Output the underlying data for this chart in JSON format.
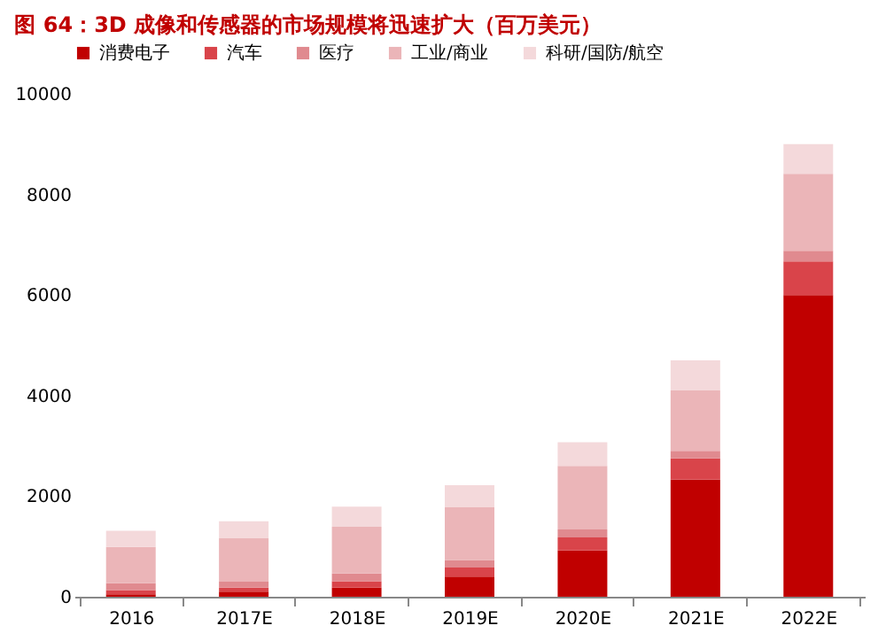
{
  "chart_data": {
    "type": "bar",
    "title": "图 64：3D 成像和传感器的市场规模将迅速扩大（百万美元）",
    "stacked": true,
    "categories": [
      "2016",
      "2017E",
      "2018E",
      "2019E",
      "2020E",
      "2021E",
      "2022E"
    ],
    "series": [
      {
        "name": "消费电子",
        "color": "#c00000",
        "values": [
          50,
          100,
          180,
          400,
          920,
          2330,
          6000
        ]
      },
      {
        "name": "汽车",
        "color": "#d9444a",
        "values": [
          80,
          80,
          130,
          180,
          260,
          420,
          670
        ]
      },
      {
        "name": "医疗",
        "color": "#e08a8f",
        "values": [
          140,
          120,
          150,
          150,
          160,
          150,
          210
        ]
      },
      {
        "name": "工业/商业",
        "color": "#ebb5b8",
        "values": [
          720,
          860,
          930,
          1050,
          1260,
          1200,
          1530
        ]
      },
      {
        "name": "科研/国防/航空",
        "color": "#f4d9db",
        "values": [
          320,
          340,
          400,
          440,
          470,
          600,
          590
        ]
      }
    ],
    "ylim": [
      0,
      10000
    ],
    "yticks": [
      0,
      2000,
      4000,
      6000,
      8000,
      10000
    ],
    "grid": false,
    "legend": "top"
  }
}
